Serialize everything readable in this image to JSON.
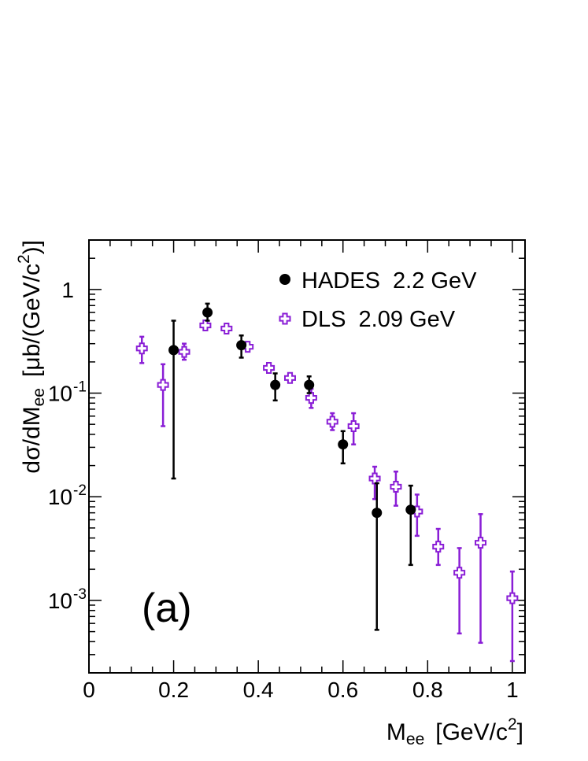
{
  "chart_data": {
    "type": "scatter",
    "panel_label": "(a)",
    "xlabel": {
      "main": "M",
      "sub": "ee",
      "unit": "[GeV/c",
      "sup": "2",
      "close": "]"
    },
    "ylabel": {
      "main": "dσ/dM",
      "sub": "ee",
      "unit": "[μb/(GeV/c",
      "sup": "2",
      "close": ")]"
    },
    "xlim": [
      0,
      1.03
    ],
    "ylim": [
      0.0002,
      3.0
    ],
    "yscale": "log",
    "x_ticks": [
      {
        "value": 0,
        "label": "0"
      },
      {
        "value": 0.2,
        "label": "0.2"
      },
      {
        "value": 0.4,
        "label": "0.4"
      },
      {
        "value": 0.6,
        "label": "0.6"
      },
      {
        "value": 0.8,
        "label": "0.8"
      },
      {
        "value": 1.0,
        "label": "1"
      }
    ],
    "y_ticks": [
      {
        "value": 1,
        "base": "1",
        "exp": ""
      },
      {
        "value": 0.1,
        "base": "10",
        "exp": "-1"
      },
      {
        "value": 0.01,
        "base": "10",
        "exp": "-2"
      },
      {
        "value": 0.001,
        "base": "10",
        "exp": "-3"
      }
    ],
    "legend_position": "top-right",
    "series": [
      {
        "name": "HADES  2.2 GeV",
        "marker": "filled-circle",
        "color": "#000000",
        "points": [
          {
            "x": 0.2,
            "y": 0.26,
            "ylo": 0.015,
            "yhi": 0.5
          },
          {
            "x": 0.28,
            "y": 0.6,
            "ylo": 0.5,
            "yhi": 0.73
          },
          {
            "x": 0.36,
            "y": 0.29,
            "ylo": 0.22,
            "yhi": 0.36
          },
          {
            "x": 0.44,
            "y": 0.12,
            "ylo": 0.085,
            "yhi": 0.155
          },
          {
            "x": 0.52,
            "y": 0.12,
            "ylo": 0.1,
            "yhi": 0.145
          },
          {
            "x": 0.6,
            "y": 0.032,
            "ylo": 0.021,
            "yhi": 0.043
          },
          {
            "x": 0.68,
            "y": 0.007,
            "ylo": 0.00052,
            "yhi": 0.0135
          },
          {
            "x": 0.76,
            "y": 0.0075,
            "ylo": 0.0022,
            "yhi": 0.0128
          }
        ]
      },
      {
        "name": "DLS  2.09 GeV",
        "marker": "open-cross",
        "color": "#8a1ed6",
        "points": [
          {
            "x": 0.125,
            "y": 0.27,
            "ylo": 0.195,
            "yhi": 0.35
          },
          {
            "x": 0.175,
            "y": 0.12,
            "ylo": 0.048,
            "yhi": 0.19
          },
          {
            "x": 0.225,
            "y": 0.25,
            "ylo": 0.21,
            "yhi": 0.3
          },
          {
            "x": 0.275,
            "y": 0.45,
            "ylo": 0.41,
            "yhi": 0.5
          },
          {
            "x": 0.325,
            "y": 0.42,
            "ylo": 0.39,
            "yhi": 0.46
          },
          {
            "x": 0.375,
            "y": 0.28,
            "ylo": 0.26,
            "yhi": 0.3
          },
          {
            "x": 0.425,
            "y": 0.175,
            "ylo": 0.16,
            "yhi": 0.19
          },
          {
            "x": 0.475,
            "y": 0.14,
            "ylo": 0.128,
            "yhi": 0.152
          },
          {
            "x": 0.525,
            "y": 0.09,
            "ylo": 0.072,
            "yhi": 0.11
          },
          {
            "x": 0.575,
            "y": 0.053,
            "ylo": 0.044,
            "yhi": 0.064
          },
          {
            "x": 0.625,
            "y": 0.048,
            "ylo": 0.032,
            "yhi": 0.064
          },
          {
            "x": 0.675,
            "y": 0.015,
            "ylo": 0.0095,
            "yhi": 0.0195
          },
          {
            "x": 0.725,
            "y": 0.0125,
            "ylo": 0.0082,
            "yhi": 0.0175
          },
          {
            "x": 0.775,
            "y": 0.0072,
            "ylo": 0.0042,
            "yhi": 0.0105
          },
          {
            "x": 0.825,
            "y": 0.0033,
            "ylo": 0.0022,
            "yhi": 0.0049
          },
          {
            "x": 0.875,
            "y": 0.00185,
            "ylo": 0.00048,
            "yhi": 0.0032
          },
          {
            "x": 0.925,
            "y": 0.0036,
            "ylo": 0.00039,
            "yhi": 0.0068
          },
          {
            "x": 1.0,
            "y": 0.00105,
            "ylo": 0.00026,
            "yhi": 0.0019
          }
        ]
      }
    ]
  }
}
